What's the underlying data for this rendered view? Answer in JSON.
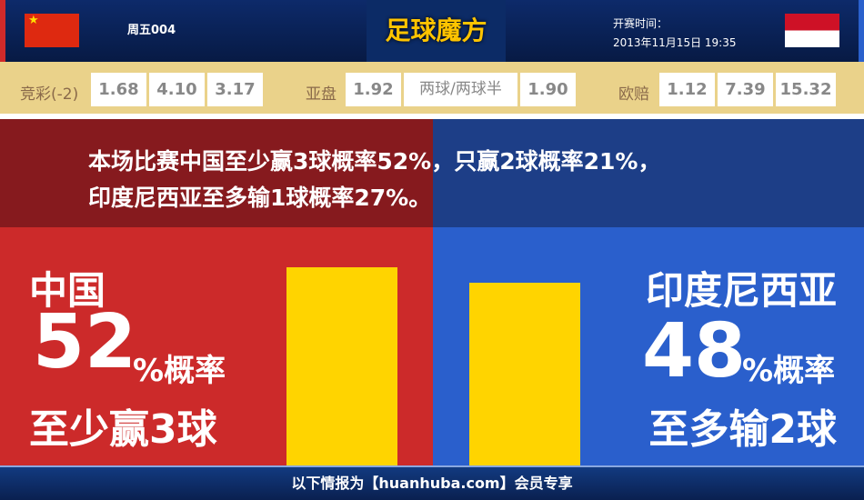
{
  "header": {
    "match_code": "周五004",
    "logo": "足球魔方",
    "kickoff_label": "开赛时间：",
    "kickoff_time": "2013年11月15日 19:35",
    "flag_home": "china-flag",
    "flag_away": "indonesia-flag"
  },
  "odds": {
    "jingcai": {
      "label": "竞彩(-2)",
      "values": [
        "1.68",
        "4.10",
        "3.17"
      ]
    },
    "asian": {
      "label": "亚盘",
      "values": [
        "1.92",
        "两球/两球半",
        "1.90"
      ]
    },
    "euro": {
      "label": "欧赔",
      "values": [
        "1.12",
        "7.39",
        "15.32"
      ]
    }
  },
  "banner": {
    "line1": "本场比赛中国至少赢3球概率52%，只赢2球概率21%，",
    "line2": "印度尼西亚至多输1球概率27%。"
  },
  "home": {
    "team": "中国",
    "percent": "52",
    "unit": "%概率",
    "desc": "至少赢3球",
    "probability": 52
  },
  "away": {
    "team": "印度尼西亚",
    "percent": "48",
    "unit": "%概率",
    "desc": "至多输2球",
    "probability": 48
  },
  "colors": {
    "bar": "#ffd400",
    "home": "#cc2a2a",
    "away": "#2a5fcc"
  },
  "footer": {
    "text": "以下情报为【huanhuba.com】会员专享"
  }
}
